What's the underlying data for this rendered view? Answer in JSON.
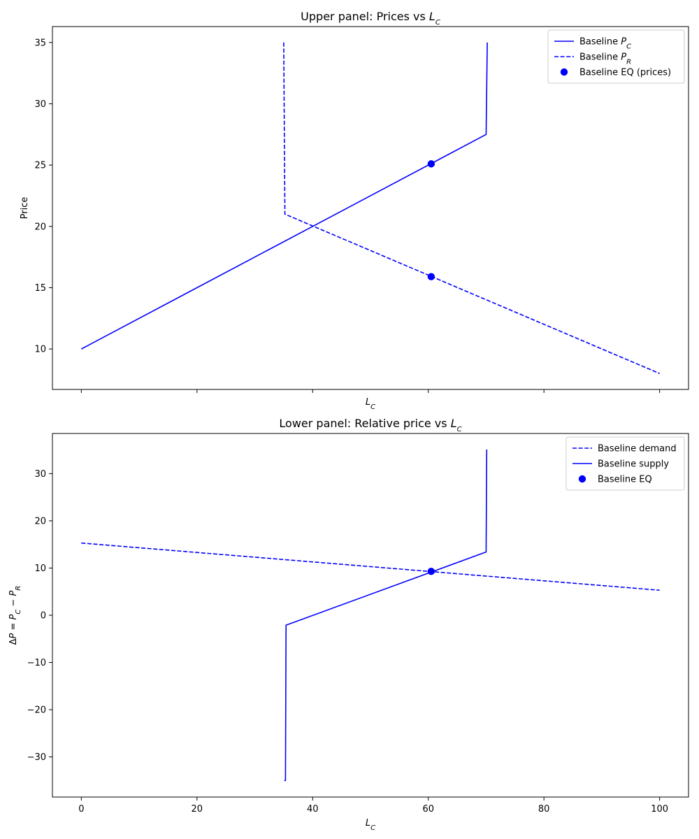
{
  "chart_data": [
    {
      "type": "line",
      "title": "Upper panel: Prices vs L_C",
      "title_prefix": "Upper panel: Prices vs ",
      "xlabel": "L_C",
      "ylabel": "Price",
      "xlim": [
        -5,
        105
      ],
      "ylim": [
        6.7,
        36.3
      ],
      "xticks": [
        0,
        20,
        40,
        60,
        80,
        100
      ],
      "xtick_labels_visible": false,
      "yticks": [
        10,
        15,
        20,
        25,
        30,
        35
      ],
      "color": "#0000ff",
      "series": [
        {
          "name": "Baseline P_C",
          "legend_prefix": "Baseline  P",
          "legend_sub": "C",
          "style": "solid",
          "x": [
            0,
            70,
            70.2
          ],
          "y": [
            10,
            27.5,
            35
          ]
        },
        {
          "name": "Baseline P_R",
          "legend_prefix": "Baseline  P",
          "legend_sub": "R",
          "style": "dashed",
          "x": [
            35,
            35.2,
            100
          ],
          "y": [
            35,
            21,
            8
          ]
        }
      ],
      "equilibrium": {
        "name": "Baseline EQ (prices)",
        "x": [
          60.5,
          60.5
        ],
        "y": [
          25.1,
          15.9
        ]
      },
      "legend_position": "top-right"
    },
    {
      "type": "line",
      "title": "Lower panel: Relative price vs L_C",
      "title_prefix": "Lower panel: Relative price vs ",
      "xlabel": "L_C",
      "ylabel": "ΔP = P_C − P_R",
      "xlim": [
        -5,
        105
      ],
      "ylim": [
        -38.5,
        38.5
      ],
      "xticks": [
        0,
        20,
        40,
        60,
        80,
        100
      ],
      "xtick_labels_visible": true,
      "yticks": [
        -30,
        -20,
        -10,
        0,
        10,
        20,
        30
      ],
      "color": "#0000ff",
      "series": [
        {
          "name": "Baseline demand",
          "style": "dashed",
          "x": [
            0,
            100
          ],
          "y": [
            15.3,
            5.3
          ]
        },
        {
          "name": "Baseline supply",
          "style": "solid",
          "x": [
            35.1,
            35.3,
            35.4,
            70,
            70.1,
            70.2
          ],
          "y": [
            -35,
            -35,
            -2.1,
            13.4,
            35,
            35
          ]
        }
      ],
      "equilibrium": {
        "name": "Baseline EQ",
        "x": [
          60.5
        ],
        "y": [
          9.3
        ]
      },
      "legend_position": "top-right"
    }
  ]
}
